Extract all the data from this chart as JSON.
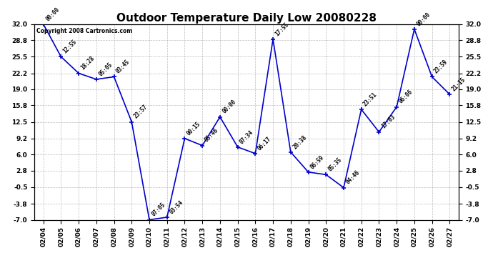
{
  "title": "Outdoor Temperature Daily Low 20080228",
  "copyright_text": "Copyright 2008 Cartronics.com",
  "x_labels": [
    "02/04",
    "02/05",
    "02/06",
    "02/07",
    "02/08",
    "02/09",
    "02/10",
    "02/11",
    "02/12",
    "02/13",
    "02/14",
    "02/15",
    "02/16",
    "02/17",
    "02/18",
    "02/19",
    "02/20",
    "02/21",
    "02/22",
    "02/23",
    "02/24",
    "02/25",
    "02/26",
    "02/27"
  ],
  "y_values": [
    32.0,
    25.5,
    22.2,
    21.0,
    21.5,
    12.5,
    -7.0,
    -6.5,
    9.2,
    7.8,
    13.5,
    7.5,
    6.2,
    29.0,
    6.5,
    2.5,
    2.0,
    -0.6,
    15.0,
    10.5,
    15.5,
    31.0,
    21.5,
    18.0
  ],
  "time_labels_clean": [
    "00:00",
    "12:55",
    "18:28",
    "05:05",
    "03:45",
    "23:57",
    "07:05",
    "03:54",
    "00:15",
    "05:46",
    "00:00",
    "07:34",
    "06:17",
    "17:55",
    "20:38",
    "06:59",
    "05:35",
    "04:46",
    "23:51",
    "17:03",
    "06:06",
    "00:00",
    "23:59",
    "21:15"
  ],
  "line_color": "#0000CC",
  "marker_color": "#0000CC",
  "bg_color": "#ffffff",
  "grid_color": "#bbbbbb",
  "y_ticks": [
    -7.0,
    -3.8,
    -0.5,
    2.8,
    6.0,
    9.2,
    12.5,
    15.8,
    19.0,
    22.2,
    25.5,
    28.8,
    32.0
  ],
  "ylim_min": -7.0,
  "ylim_max": 32.0,
  "title_fontsize": 11,
  "tick_fontsize": 6.5,
  "annotation_fontsize": 5.5,
  "copyright_fontsize": 5.5
}
